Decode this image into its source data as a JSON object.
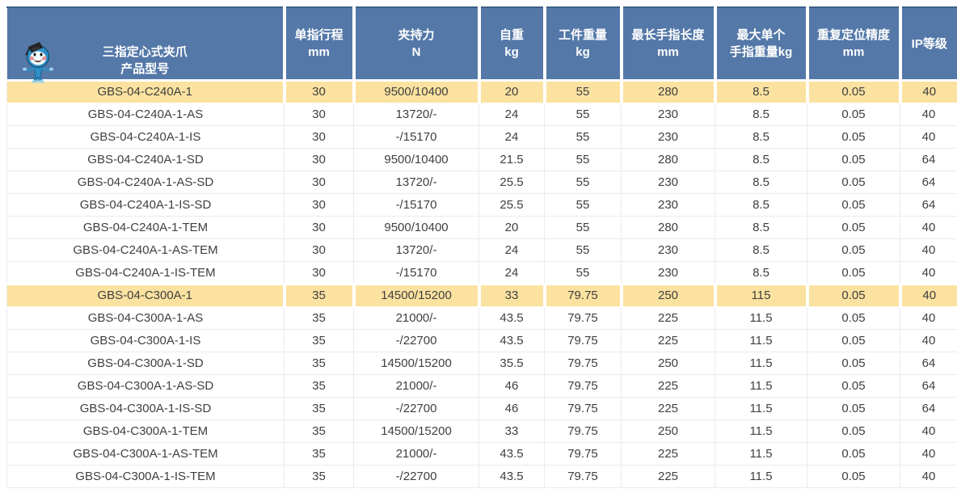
{
  "table": {
    "columns": [
      {
        "id": "model",
        "label": "三指定心式夹爪\n产品型号"
      },
      {
        "id": "finger-stroke",
        "label": "单指行程\nmm"
      },
      {
        "id": "gripping-force",
        "label": "夹持力\nN"
      },
      {
        "id": "self-weight",
        "label": "自重\nkg"
      },
      {
        "id": "workpiece-weight",
        "label": "工件重量\nkg"
      },
      {
        "id": "max-finger-length",
        "label": "最长手指长度\nmm"
      },
      {
        "id": "max-finger-weight",
        "label": "最大单个\n手指重量kg"
      },
      {
        "id": "repeat-accuracy",
        "label": "重复定位精度\nmm"
      },
      {
        "id": "ip-rating",
        "label": "IP等级"
      }
    ],
    "rows": [
      {
        "highlight": true,
        "cells": [
          "GBS-04-C240A-1",
          "30",
          "9500/10400",
          "20",
          "55",
          "280",
          "8.5",
          "0.05",
          "40"
        ]
      },
      {
        "highlight": false,
        "cells": [
          "GBS-04-C240A-1-AS",
          "30",
          "13720/-",
          "24",
          "55",
          "230",
          "8.5",
          "0.05",
          "40"
        ]
      },
      {
        "highlight": false,
        "cells": [
          "GBS-04-C240A-1-IS",
          "30",
          "-/15170",
          "24",
          "55",
          "230",
          "8.5",
          "0.05",
          "40"
        ]
      },
      {
        "highlight": false,
        "cells": [
          "GBS-04-C240A-1-SD",
          "30",
          "9500/10400",
          "21.5",
          "55",
          "280",
          "8.5",
          "0.05",
          "64"
        ]
      },
      {
        "highlight": false,
        "cells": [
          "GBS-04-C240A-1-AS-SD",
          "30",
          "13720/-",
          "25.5",
          "55",
          "230",
          "8.5",
          "0.05",
          "64"
        ]
      },
      {
        "highlight": false,
        "cells": [
          "GBS-04-C240A-1-IS-SD",
          "30",
          "-/15170",
          "25.5",
          "55",
          "230",
          "8.5",
          "0.05",
          "64"
        ]
      },
      {
        "highlight": false,
        "cells": [
          "GBS-04-C240A-1-TEM",
          "30",
          "9500/10400",
          "20",
          "55",
          "280",
          "8.5",
          "0.05",
          "40"
        ]
      },
      {
        "highlight": false,
        "cells": [
          "GBS-04-C240A-1-AS-TEM",
          "30",
          "13720/-",
          "24",
          "55",
          "230",
          "8.5",
          "0.05",
          "40"
        ]
      },
      {
        "highlight": false,
        "cells": [
          "GBS-04-C240A-1-IS-TEM",
          "30",
          "-/15170",
          "24",
          "55",
          "230",
          "8.5",
          "0.05",
          "40"
        ]
      },
      {
        "highlight": true,
        "cells": [
          "GBS-04-C300A-1",
          "35",
          "14500/15200",
          "33",
          "79.75",
          "250",
          "115",
          "0.05",
          "40"
        ]
      },
      {
        "highlight": false,
        "cells": [
          "GBS-04-C300A-1-AS",
          "35",
          "21000/-",
          "43.5",
          "79.75",
          "225",
          "11.5",
          "0.05",
          "40"
        ]
      },
      {
        "highlight": false,
        "cells": [
          "GBS-04-C300A-1-IS",
          "35",
          "-/22700",
          "43.5",
          "79.75",
          "225",
          "11.5",
          "0.05",
          "40"
        ]
      },
      {
        "highlight": false,
        "cells": [
          "GBS-04-C300A-1-SD",
          "35",
          "14500/15200",
          "35.5",
          "79.75",
          "250",
          "11.5",
          "0.05",
          "64"
        ]
      },
      {
        "highlight": false,
        "cells": [
          "GBS-04-C300A-1-AS-SD",
          "35",
          "21000/-",
          "46",
          "79.75",
          "225",
          "11.5",
          "0.05",
          "64"
        ]
      },
      {
        "highlight": false,
        "cells": [
          "GBS-04-C300A-1-IS-SD",
          "35",
          "-/22700",
          "46",
          "79.75",
          "225",
          "11.5",
          "0.05",
          "64"
        ]
      },
      {
        "highlight": false,
        "cells": [
          "GBS-04-C300A-1-TEM",
          "35",
          "14500/15200",
          "33",
          "79.75",
          "250",
          "11.5",
          "0.05",
          "40"
        ]
      },
      {
        "highlight": false,
        "cells": [
          "GBS-04-C300A-1-AS-TEM",
          "35",
          "21000/-",
          "43.5",
          "79.75",
          "225",
          "11.5",
          "0.05",
          "40"
        ]
      },
      {
        "highlight": false,
        "cells": [
          "GBS-04-C300A-1-IS-TEM",
          "35",
          "-/22700",
          "43.5",
          "79.75",
          "225",
          "11.5",
          "0.05",
          "40"
        ]
      }
    ]
  },
  "icons": {
    "mascot": "graduate-mascot-icon"
  },
  "colors": {
    "header_bg": "#5478A8",
    "header_text": "#FFFFFF",
    "highlight_row_bg": "#FBE2A0",
    "body_text": "#3F3F3F",
    "cell_border": "#E9EBEF"
  }
}
